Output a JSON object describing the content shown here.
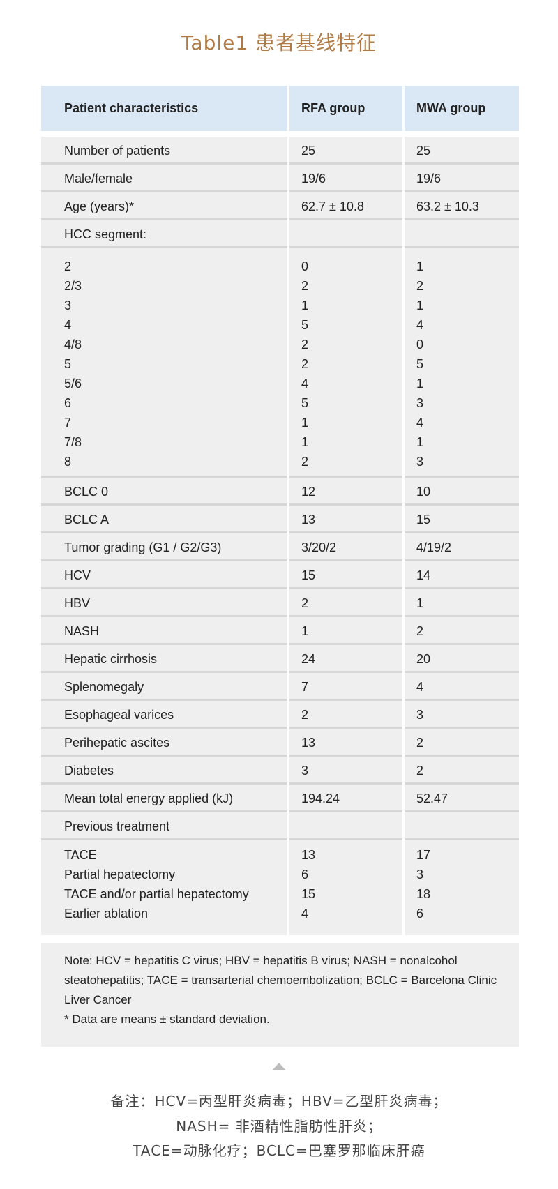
{
  "title": "Table1 患者基线特征",
  "table": {
    "headers": [
      "Patient characteristics",
      "RFA group",
      "MWA group"
    ],
    "rows": [
      {
        "type": "single",
        "cells": [
          "Number of patients",
          "25",
          "25"
        ]
      },
      {
        "type": "single",
        "cells": [
          "Male/female",
          "19/6",
          "19/6"
        ]
      },
      {
        "type": "single",
        "cells": [
          "Age (years)*",
          "62.7 ± 10.8",
          "63.2 ± 10.3"
        ]
      },
      {
        "type": "single",
        "cells": [
          "HCC segment:",
          "",
          ""
        ]
      },
      {
        "type": "block",
        "cells": [
          "2\n2/3\n3\n4\n4/8\n5\n5/6\n6\n7\n7/8\n8",
          "0\n2\n1\n5\n2\n2\n4\n5\n1\n1\n2",
          "1\n2\n1\n4\n0\n5\n1\n3\n4\n1\n3"
        ]
      },
      {
        "type": "single",
        "cells": [
          "BCLC 0",
          "12",
          "10"
        ]
      },
      {
        "type": "single",
        "cells": [
          "BCLC A",
          "13",
          "15"
        ]
      },
      {
        "type": "single",
        "cells": [
          "Tumor grading (G1 / G2/G3)",
          "3/20/2",
          "4/19/2"
        ]
      },
      {
        "type": "single",
        "cells": [
          "HCV",
          "15",
          "14"
        ]
      },
      {
        "type": "single",
        "cells": [
          "HBV",
          "2",
          "1"
        ]
      },
      {
        "type": "single",
        "cells": [
          "NASH",
          "1",
          "2"
        ]
      },
      {
        "type": "single",
        "cells": [
          "Hepatic cirrhosis",
          "24",
          "20"
        ]
      },
      {
        "type": "single",
        "cells": [
          "Splenomegaly",
          "7",
          "4"
        ]
      },
      {
        "type": "single",
        "cells": [
          "Esophageal varices",
          "2",
          "3"
        ]
      },
      {
        "type": "single",
        "cells": [
          "Perihepatic ascites",
          "13",
          "2"
        ]
      },
      {
        "type": "single",
        "cells": [
          "Diabetes",
          "3",
          "2"
        ]
      },
      {
        "type": "single",
        "cells": [
          "Mean total energy applied (kJ)",
          "194.24",
          "52.47"
        ]
      },
      {
        "type": "single",
        "cells": [
          "Previous treatment",
          "",
          ""
        ]
      },
      {
        "type": "block",
        "cells": [
          "TACE\nPartial hepatectomy\nTACE and/or partial hepatectomy\nEarlier ablation",
          "13\n6\n15\n4",
          "17\n3\n18\n6"
        ]
      }
    ]
  },
  "note": {
    "text": "Note: HCV = hepatitis C virus; HBV = hepatitis B virus; NASH = nonalcohol steatohepatitis; TACE = transarterial chemoembolization; BCLC = Barcelona Clinic Liver Cancer",
    "footnote": "* Data are means ± standard deviation."
  },
  "chinese_note": [
    "备注：HCV=丙型肝炎病毒；HBV=乙型肝炎病毒；",
    "NASH= 非酒精性脂肪性肝炎；",
    "TACE=动脉化疗；BCLC=巴塞罗那临床肝癌"
  ],
  "colors": {
    "title": "#b07a45",
    "header_bg": "#dae8f5",
    "cell_bg": "#efefef"
  },
  "icons": {
    "divider": "triangle-up-icon"
  }
}
